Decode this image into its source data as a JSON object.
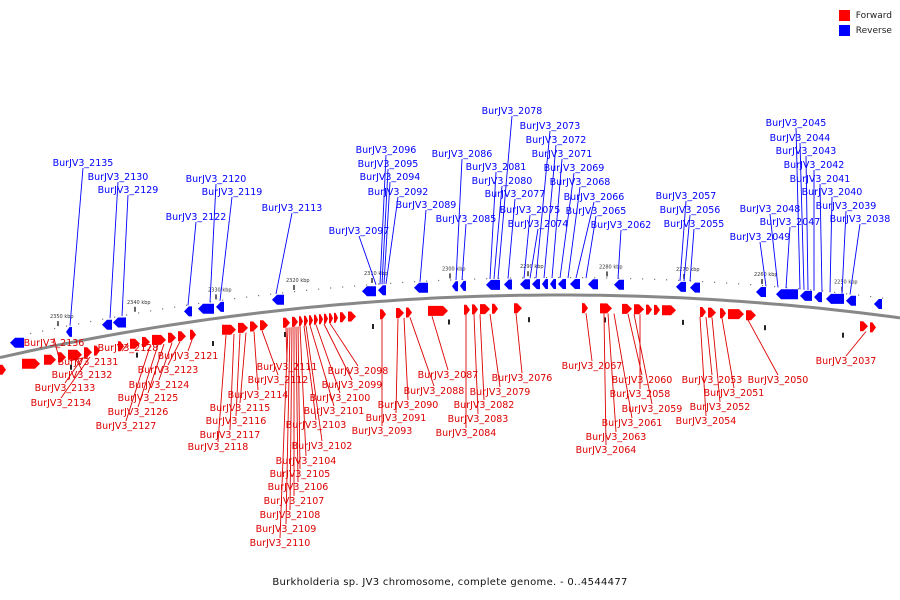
{
  "legend": [
    {
      "label": "Forward",
      "color": "#ff0000"
    },
    {
      "label": "Reverse",
      "color": "#0000ff"
    }
  ],
  "caption": "Burkholderia sp. JV3 chromosome, complete genome. - 0..4544477",
  "ticks": [
    "2350 kbp",
    "2340 kbp",
    "2330 kbp",
    "2320 kbp",
    "2310 kbp",
    "2300 kbp",
    "2290 kbp",
    "2280 kbp",
    "2270 kbp",
    "2260 kbp",
    "2250 kbp"
  ],
  "forward_genes": [
    "BurJV3_2136",
    "BurJV3_2134",
    "BurJV3_2133",
    "BurJV3_2132",
    "BurJV3_2131",
    "BurJV3_2128",
    "BurJV3_2127",
    "BurJV3_2126",
    "BurJV3_2125",
    "BurJV3_2124",
    "BurJV3_2123",
    "BurJV3_2121",
    "BurJV3_2118",
    "BurJV3_2117",
    "BurJV3_2116",
    "BurJV3_2115",
    "BurJV3_2114",
    "BurJV3_2112",
    "BurJV3_2111",
    "BurJV3_2110",
    "BurJV3_2109",
    "BurJV3_2108",
    "BurJV3_2107",
    "BurJV3_2106",
    "BurJV3_2105",
    "BurJV3_2104",
    "BurJV3_2103",
    "BurJV3_2102",
    "BurJV3_2101",
    "BurJV3_2100",
    "BurJV3_2099",
    "BurJV3_2098",
    "BurJV3_2093",
    "BurJV3_2091",
    "BurJV3_2090",
    "BurJV3_2088",
    "BurJV3_2087",
    "BurJV3_2084",
    "BurJV3_2083",
    "BurJV3_2082",
    "BurJV3_2079",
    "BurJV3_2076",
    "BurJV3_2067",
    "BurJV3_2064",
    "BurJV3_2063",
    "BurJV3_2061",
    "BurJV3_2060",
    "BurJV3_2059",
    "BurJV3_2058",
    "BurJV3_2054",
    "BurJV3_2053",
    "BurJV3_2052",
    "BurJV3_2051",
    "BurJV3_2050",
    "BurJV3_2037"
  ],
  "reverse_genes": [
    "BurJV3_2135",
    "BurJV3_2130",
    "BurJV3_2129",
    "BurJV3_2122",
    "BurJV3_2120",
    "BurJV3_2119",
    "BurJV3_2113",
    "BurJV3_2097",
    "BurJV3_2096",
    "BurJV3_2095",
    "BurJV3_2094",
    "BurJV3_2092",
    "BurJV3_2089",
    "BurJV3_2086",
    "BurJV3_2085",
    "BurJV3_2081",
    "BurJV3_2080",
    "BurJV3_2078",
    "BurJV3_2077",
    "BurJV3_2075",
    "BurJV3_2074",
    "BurJV3_2073",
    "BurJV3_2072",
    "BurJV3_2071",
    "BurJV3_2069",
    "BurJV3_2068",
    "BurJV3_2066",
    "BurJV3_2065",
    "BurJV3_2062",
    "BurJV3_2057",
    "BurJV3_2056",
    "BurJV3_2055",
    "BurJV3_2049",
    "BurJV3_2048",
    "BurJV3_2047",
    "BurJV3_2045",
    "BurJV3_2044",
    "BurJV3_2043",
    "BurJV3_2042",
    "BurJV3_2041",
    "BurJV3_2040",
    "BurJV3_2039",
    "BurJV3_2038"
  ]
}
